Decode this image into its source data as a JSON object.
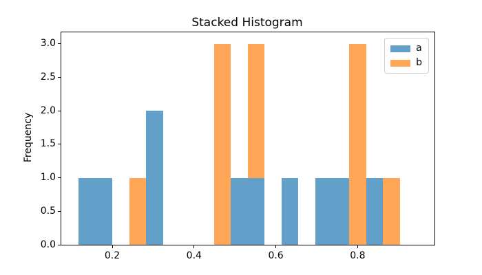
{
  "figure": {
    "background": "#ffffff",
    "text_color": "#000000"
  },
  "chart_data": {
    "type": "bar",
    "variant": "stacked-histogram",
    "stacked": true,
    "title": "Stacked Histogram",
    "xlabel": "",
    "ylabel": "Frequency",
    "grid": false,
    "bin_edges": [
      0.1172,
      0.1586,
      0.2,
      0.2414,
      0.2828,
      0.3242,
      0.3656,
      0.407,
      0.4484,
      0.4898,
      0.5312,
      0.5726,
      0.614,
      0.6554,
      0.6968,
      0.7382,
      0.7796,
      0.821,
      0.8624,
      0.9038,
      0.9452
    ],
    "series": [
      {
        "name": "a",
        "color": "#62A0CA",
        "values": [
          1,
          1,
          0,
          0,
          2,
          0,
          0,
          0,
          0,
          1,
          1,
          0,
          1,
          0,
          1,
          1,
          0,
          1,
          0,
          0
        ]
      },
      {
        "name": "b",
        "color": "#FFA657",
        "values": [
          0,
          0,
          0,
          1,
          0,
          0,
          0,
          0,
          3,
          0,
          2,
          0,
          0,
          0,
          0,
          0,
          3,
          0,
          1,
          0
        ]
      }
    ],
    "xlim": [
      0.0754,
      0.9879
    ],
    "ylim": [
      0,
      3.1715
    ],
    "xticks": [
      0.2,
      0.4,
      0.6,
      0.8
    ],
    "yticks": [
      0.0,
      0.5,
      1.0,
      1.5,
      2.0,
      2.5,
      3.0
    ],
    "x_tick_decimals": 1,
    "y_tick_decimals": 1,
    "legend": {
      "position": "upper right",
      "entries": [
        "a",
        "b"
      ]
    }
  }
}
